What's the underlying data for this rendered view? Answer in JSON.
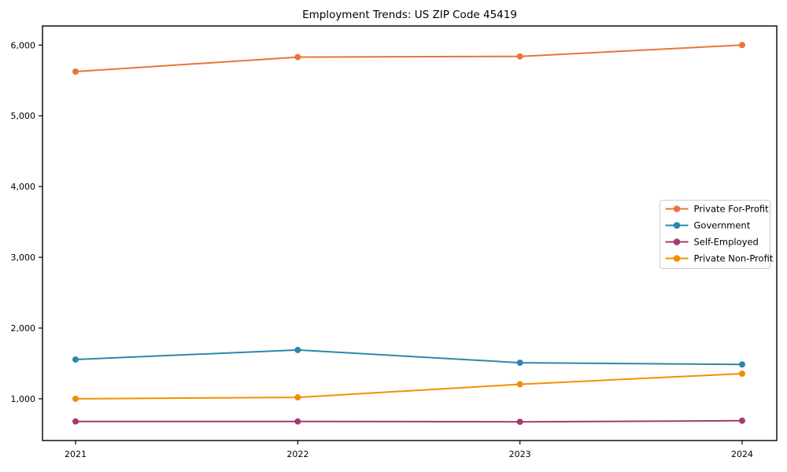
{
  "title": "Employment Trends: US ZIP Code 45419",
  "chart_data": {
    "type": "line",
    "title": "Employment Trends: US ZIP Code 45419",
    "x": [
      2021,
      2022,
      2023,
      2024
    ],
    "x_tick_labels": [
      "2021",
      "2022",
      "2023",
      "2024"
    ],
    "y_ticks": [
      1000,
      2000,
      3000,
      4000,
      5000,
      6000
    ],
    "y_tick_labels": [
      "1,000",
      "2,000",
      "3,000",
      "4,000",
      "5,000",
      "6,000"
    ],
    "ylim": [
      410,
      6270
    ],
    "grid": false,
    "legend_position": "center right",
    "series": [
      {
        "name": "Private For-Profit",
        "color": "#E8743B",
        "values": [
          5625,
          5830,
          5840,
          6000
        ]
      },
      {
        "name": "Government",
        "color": "#2E86AB",
        "values": [
          1555,
          1690,
          1510,
          1485
        ]
      },
      {
        "name": "Self-Employed",
        "color": "#A23B72",
        "values": [
          680,
          680,
          675,
          690
        ]
      },
      {
        "name": "Private Non-Profit",
        "color": "#F18F01",
        "values": [
          1000,
          1020,
          1205,
          1355
        ]
      }
    ],
    "axis_color": "#000000",
    "text_color": "#000000",
    "legend_border_color": "#cccccc",
    "background_color": "#ffffff"
  }
}
